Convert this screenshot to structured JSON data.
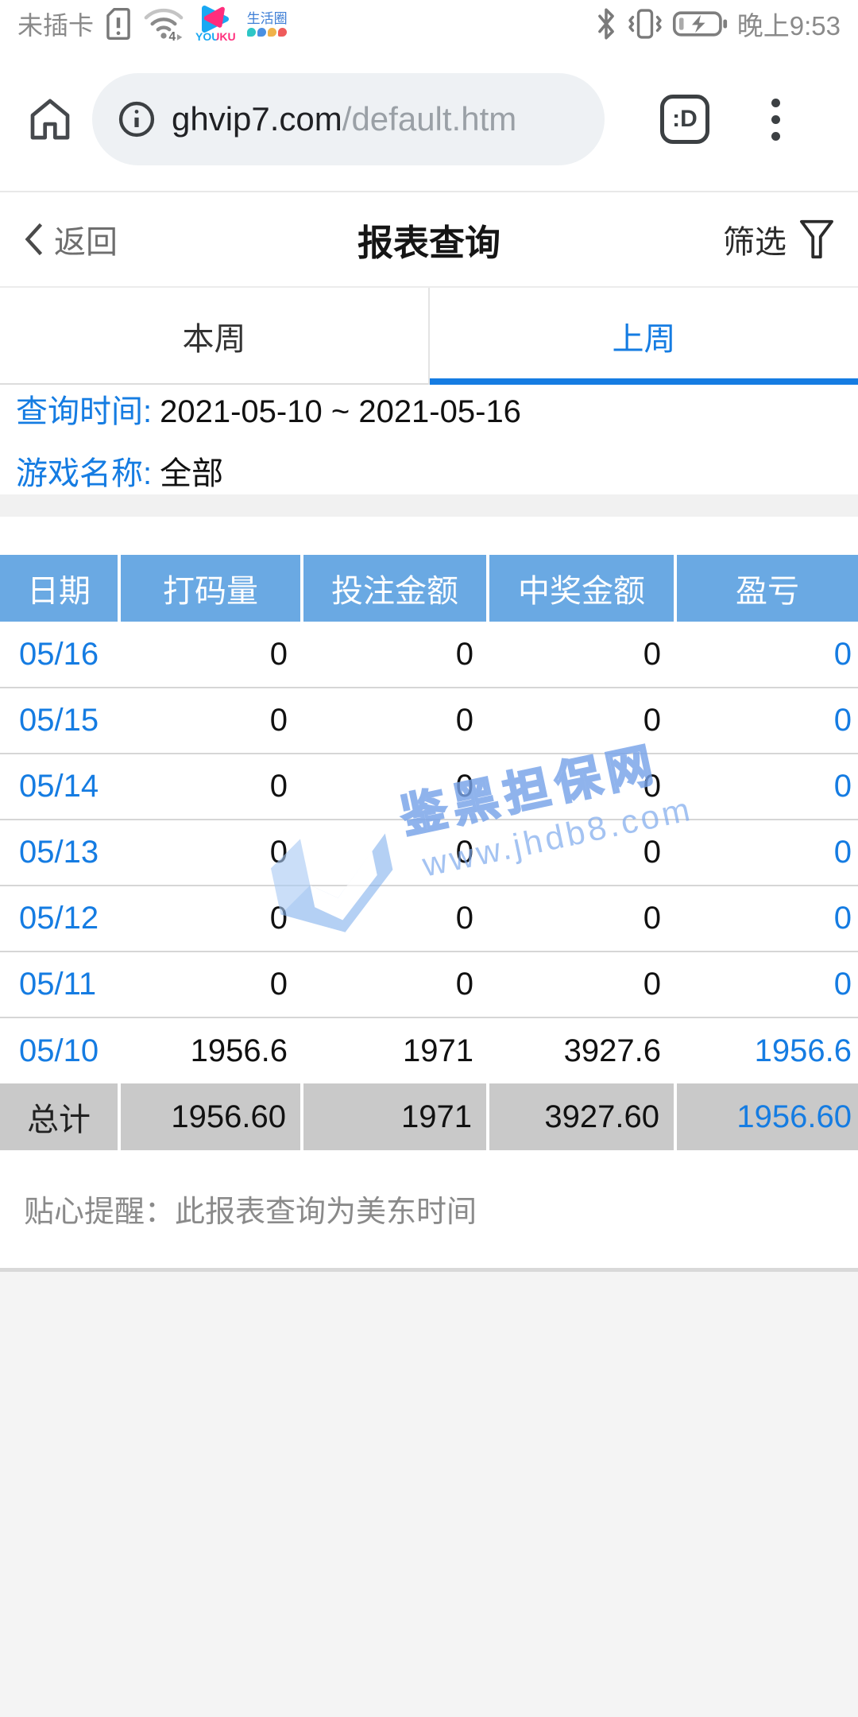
{
  "colors": {
    "accent_blue": "#157ce2",
    "table_header_blue": "#6aa9e3",
    "total_row_gray": "#c9c9c9",
    "watermark_blue": "#86b3ee",
    "url_pill_gray": "#eef1f4"
  },
  "status_bar": {
    "carrier": "未插卡",
    "time": "晚上9:53",
    "youku_label": "YOUKU",
    "life_circle_label": "生活圈",
    "icons": [
      "sim-warning-icon",
      "wifi-icon",
      "youku-icon",
      "life-circle-icon",
      "bluetooth-icon",
      "vibrate-icon",
      "battery-charging-icon"
    ],
    "wifi_badge": "4"
  },
  "browser": {
    "url_host": "ghvip7.com",
    "url_path": "/default.htm",
    "tab_badge": ":D",
    "icons": [
      "home-icon",
      "info-icon",
      "tab-switcher-icon",
      "overflow-menu-icon"
    ]
  },
  "nav": {
    "back_label": "返回",
    "title": "报表查询",
    "filter_label": "筛选"
  },
  "tabs": [
    {
      "label": "本周",
      "active": false
    },
    {
      "label": "上周",
      "active": true
    }
  ],
  "query_info": {
    "time_label": "查询时间:",
    "time_value": "2021-05-10 ~ 2021-05-16",
    "game_label": "游戏名称:",
    "game_value": "全部"
  },
  "report_table": {
    "headers": [
      "日期",
      "打码量",
      "投注金额",
      "中奖金额",
      "盈亏"
    ],
    "rows": [
      {
        "date": "05/16",
        "values": [
          "0",
          "0",
          "0",
          "0"
        ]
      },
      {
        "date": "05/15",
        "values": [
          "0",
          "0",
          "0",
          "0"
        ]
      },
      {
        "date": "05/14",
        "values": [
          "0",
          "0",
          "0",
          "0"
        ]
      },
      {
        "date": "05/13",
        "values": [
          "0",
          "0",
          "0",
          "0"
        ]
      },
      {
        "date": "05/12",
        "values": [
          "0",
          "0",
          "0",
          "0"
        ]
      },
      {
        "date": "05/11",
        "values": [
          "0",
          "0",
          "0",
          "0"
        ]
      },
      {
        "date": "05/10",
        "values": [
          "1956.6",
          "1971",
          "3927.6",
          "1956.6"
        ]
      }
    ],
    "total": {
      "label": "总计",
      "values": [
        "1956.60",
        "1971",
        "3927.60",
        "1956.60"
      ]
    }
  },
  "note": "贴心提醒：此报表查询为美东时间",
  "watermark": {
    "title": "鉴黑担保网",
    "url": "www.jhdb8.com"
  }
}
